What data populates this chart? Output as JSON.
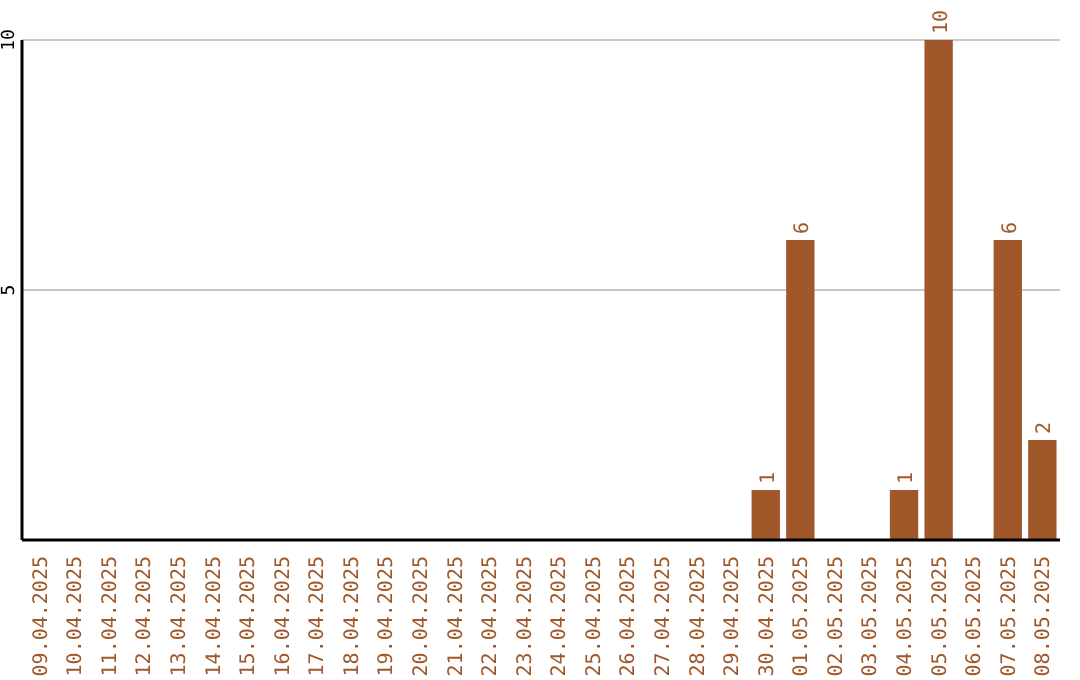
{
  "chart_data": {
    "type": "bar",
    "categories": [
      "09.04.2025",
      "10.04.2025",
      "11.04.2025",
      "12.04.2025",
      "13.04.2025",
      "14.04.2025",
      "15.04.2025",
      "16.04.2025",
      "17.04.2025",
      "18.04.2025",
      "19.04.2025",
      "20.04.2025",
      "21.04.2025",
      "22.04.2025",
      "23.04.2025",
      "24.04.2025",
      "25.04.2025",
      "26.04.2025",
      "27.04.2025",
      "28.04.2025",
      "29.04.2025",
      "30.04.2025",
      "01.05.2025",
      "02.05.2025",
      "03.05.2025",
      "04.05.2025",
      "05.05.2025",
      "06.05.2025",
      "07.05.2025",
      "08.05.2025"
    ],
    "values": [
      0,
      0,
      0,
      0,
      0,
      0,
      0,
      0,
      0,
      0,
      0,
      0,
      0,
      0,
      0,
      0,
      0,
      0,
      0,
      0,
      0,
      1,
      6,
      0,
      0,
      1,
      10,
      0,
      6,
      2
    ],
    "value_labels": [
      null,
      null,
      null,
      null,
      null,
      null,
      null,
      null,
      null,
      null,
      null,
      null,
      null,
      null,
      null,
      null,
      null,
      null,
      null,
      null,
      null,
      "1",
      "6",
      null,
      null,
      "1",
      "10",
      null,
      "6",
      "2"
    ],
    "color": "#a0582a",
    "ylim": [
      0,
      10
    ],
    "yticks": [
      5,
      10
    ],
    "grid": "y"
  }
}
